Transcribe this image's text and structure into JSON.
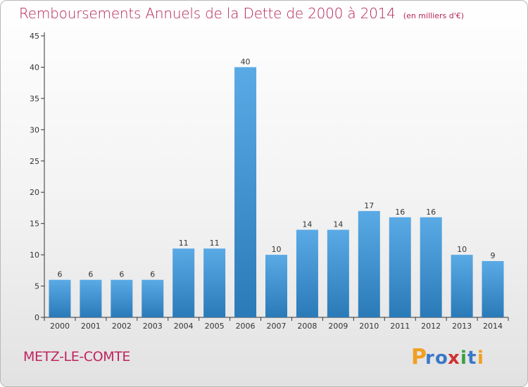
{
  "title": "Remboursements Annuels de la Dette de 2000 à 2014",
  "subtitle": "(en milliers d'€)",
  "commune": "METZ-LE-COMTE",
  "logo_text": "Proxiti",
  "colors": {
    "title": "#b5255a",
    "bar_top": "#5aaae6",
    "bar_bottom": "#2a7ab8",
    "axis": "#333333"
  },
  "chart_data": {
    "type": "bar",
    "categories": [
      "2000",
      "2001",
      "2002",
      "2003",
      "2004",
      "2005",
      "2006",
      "2007",
      "2008",
      "2009",
      "2010",
      "2011",
      "2012",
      "2013",
      "2014"
    ],
    "values": [
      6,
      6,
      6,
      6,
      11,
      11,
      40,
      10,
      14,
      14,
      17,
      16,
      16,
      10,
      9
    ],
    "ylim": [
      0,
      45
    ],
    "yticks": [
      0,
      5,
      10,
      15,
      20,
      25,
      30,
      35,
      40,
      45
    ],
    "grid": false,
    "title": "Remboursements Annuels de la Dette de 2000 à 2014",
    "xlabel": "",
    "ylabel": ""
  }
}
